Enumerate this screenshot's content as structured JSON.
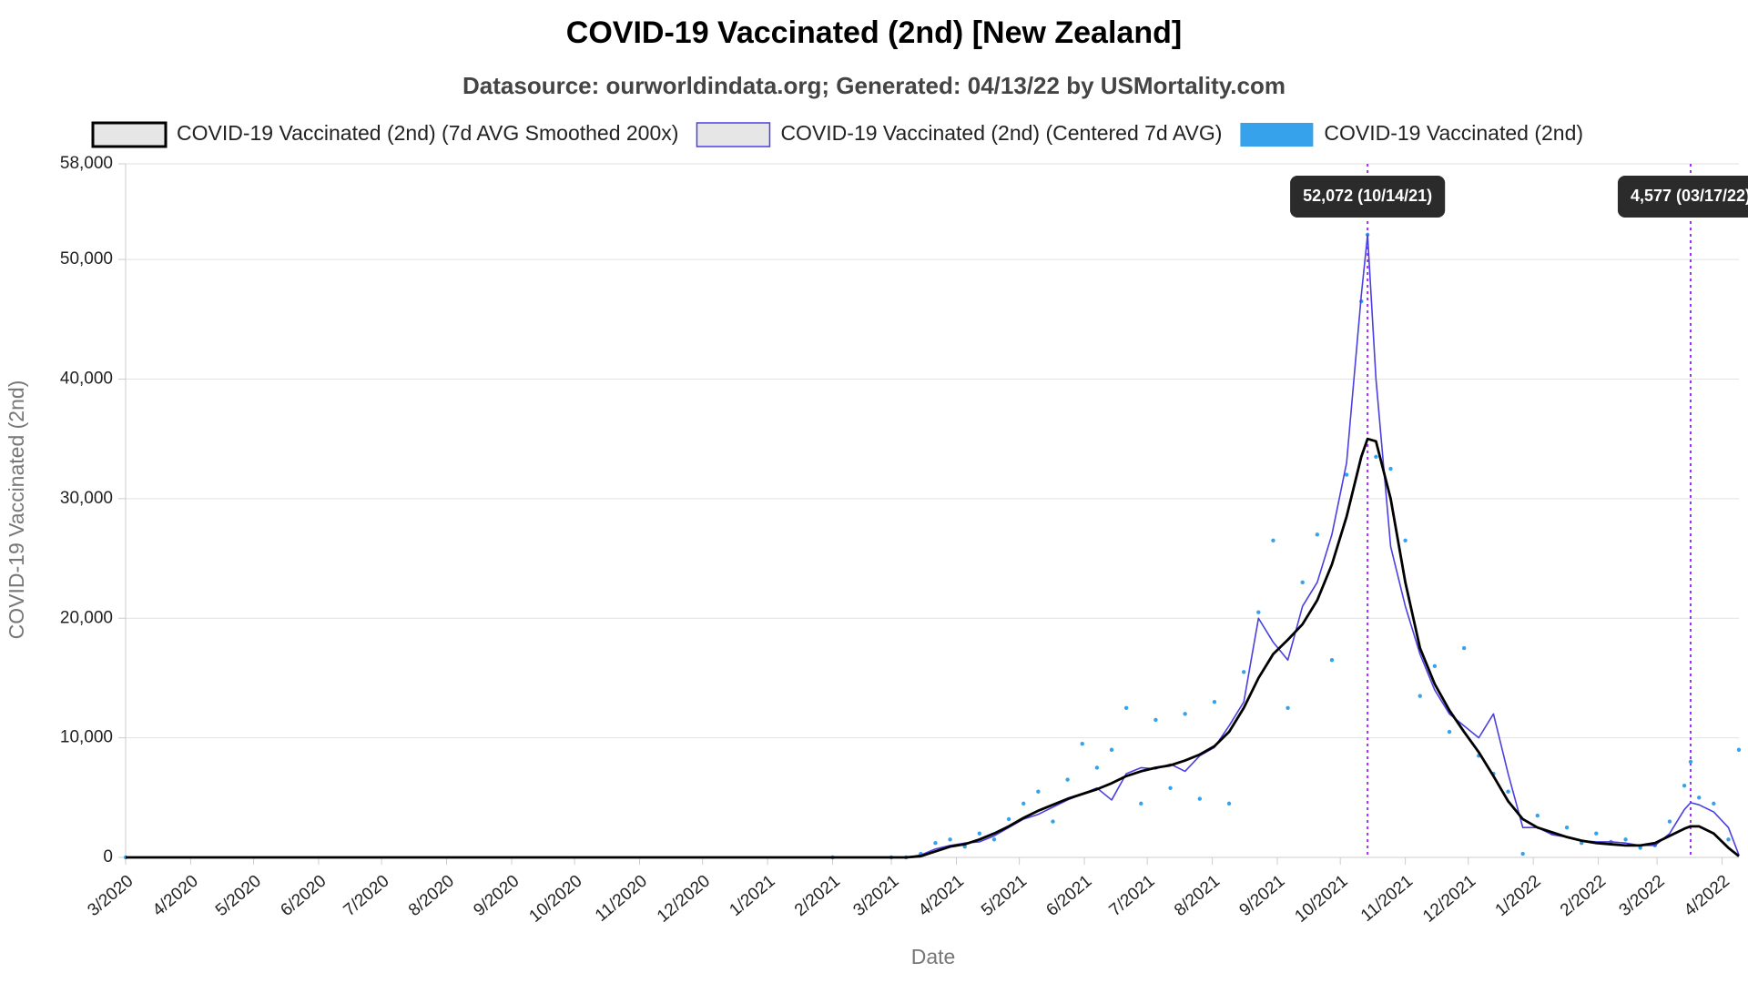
{
  "chart_data": {
    "type": "line",
    "title": "COVID-19 Vaccinated (2nd) [New Zealand]",
    "subtitle": "Datasource: ourworldindata.org; Generated: 04/13/22 by USMortality.com",
    "x_label": "Date",
    "y_label": "COVID-19 Vaccinated (2nd)",
    "x": [
      "2020-03-01",
      "2021-02-01",
      "2021-03-01",
      "2021-03-08",
      "2021-03-15",
      "2021-03-22",
      "2021-03-29",
      "2021-04-05",
      "2021-04-12",
      "2021-04-19",
      "2021-04-26",
      "2021-05-03",
      "2021-05-10",
      "2021-05-17",
      "2021-05-24",
      "2021-05-31",
      "2021-06-07",
      "2021-06-14",
      "2021-06-21",
      "2021-06-28",
      "2021-07-05",
      "2021-07-12",
      "2021-07-19",
      "2021-07-26",
      "2021-08-02",
      "2021-08-09",
      "2021-08-16",
      "2021-08-23",
      "2021-08-30",
      "2021-09-06",
      "2021-09-13",
      "2021-09-20",
      "2021-09-27",
      "2021-10-04",
      "2021-10-11",
      "2021-10-14",
      "2021-10-18",
      "2021-10-25",
      "2021-11-01",
      "2021-11-08",
      "2021-11-15",
      "2021-11-22",
      "2021-11-29",
      "2021-12-06",
      "2021-12-13",
      "2021-12-20",
      "2021-12-27",
      "2022-01-03",
      "2022-01-10",
      "2022-01-17",
      "2022-01-24",
      "2022-01-31",
      "2022-02-07",
      "2022-02-14",
      "2022-02-21",
      "2022-02-28",
      "2022-03-07",
      "2022-03-14",
      "2022-03-17",
      "2022-03-21",
      "2022-03-28",
      "2022-04-04",
      "2022-04-09"
    ],
    "series": [
      {
        "name": "COVID-19 Vaccinated (2nd) (7d AVG Smoothed 200x)",
        "type": "line",
        "color": "#000000",
        "values": [
          0,
          0,
          0,
          0,
          100,
          500,
          900,
          1100,
          1500,
          2000,
          2600,
          3300,
          3900,
          4400,
          4900,
          5300,
          5700,
          6200,
          6800,
          7200,
          7500,
          7700,
          8100,
          8600,
          9300,
          10500,
          12500,
          15000,
          17000,
          18200,
          19500,
          21500,
          24500,
          28500,
          33500,
          35000,
          34800,
          30000,
          23000,
          17500,
          14500,
          12300,
          10500,
          8800,
          6800,
          4700,
          3200,
          2500,
          2100,
          1700,
          1400,
          1200,
          1100,
          1000,
          1000,
          1200,
          1800,
          2400,
          2600,
          2600,
          2000,
          800,
          100
        ]
      },
      {
        "name": "COVID-19 Vaccinated (2nd) (Centered 7d AVG)",
        "type": "line",
        "color": "#4a3fe0",
        "values": [
          0,
          0,
          0,
          0,
          200,
          700,
          1000,
          1200,
          1300,
          1800,
          2500,
          3200,
          3600,
          4200,
          4800,
          5300,
          5800,
          4800,
          7000,
          7500,
          7400,
          7800,
          7200,
          8500,
          9200,
          11000,
          13000,
          20000,
          18000,
          16500,
          21000,
          23000,
          27000,
          33000,
          47000,
          52072,
          40000,
          26000,
          21000,
          17000,
          14000,
          12000,
          11000,
          10000,
          12000,
          7000,
          2500,
          2500,
          1900,
          1700,
          1400,
          1300,
          1300,
          1200,
          1000,
          1000,
          2000,
          4000,
          4577,
          4400,
          3800,
          2500,
          200
        ]
      },
      {
        "name": "COVID-19 Vaccinated (2nd)",
        "type": "scatter",
        "color": "#36a2eb",
        "values": [
          0,
          0,
          0,
          0,
          300,
          1200,
          1500,
          900,
          2000,
          1500,
          3200,
          4500,
          5500,
          3000,
          6500,
          9500,
          7500,
          9000,
          12500,
          4500,
          11500,
          5800,
          12000,
          4900,
          13000,
          4500,
          15500,
          20500,
          26500,
          12500,
          23000,
          27000,
          16500,
          32000,
          46500,
          52072,
          33500,
          32500,
          26500,
          13500,
          16000,
          10500,
          17500,
          8500,
          7000,
          5500,
          300,
          3500,
          2000,
          2500,
          1200,
          2000,
          1300,
          1500,
          800,
          1000,
          3000,
          6000,
          8000,
          5000,
          4500,
          1500,
          9000
        ]
      }
    ],
    "annotations": [
      {
        "x": "2021-10-14",
        "value": 52072,
        "label": "52,072 (10/14/21)"
      },
      {
        "x": "2022-03-17",
        "value": 4577,
        "label": "4,577 (03/17/22)"
      }
    ],
    "xlim": [
      "2020-03-01",
      "2022-04-09"
    ],
    "xticks": [
      {
        "value": "2020-03-01",
        "label": "3/2020"
      },
      {
        "value": "2020-04-01",
        "label": "4/2020"
      },
      {
        "value": "2020-05-01",
        "label": "5/2020"
      },
      {
        "value": "2020-06-01",
        "label": "6/2020"
      },
      {
        "value": "2020-07-01",
        "label": "7/2020"
      },
      {
        "value": "2020-08-01",
        "label": "8/2020"
      },
      {
        "value": "2020-09-01",
        "label": "9/2020"
      },
      {
        "value": "2020-10-01",
        "label": "10/2020"
      },
      {
        "value": "2020-11-01",
        "label": "11/2020"
      },
      {
        "value": "2020-12-01",
        "label": "12/2020"
      },
      {
        "value": "2021-01-01",
        "label": "1/2021"
      },
      {
        "value": "2021-02-01",
        "label": "2/2021"
      },
      {
        "value": "2021-03-01",
        "label": "3/2021"
      },
      {
        "value": "2021-04-01",
        "label": "4/2021"
      },
      {
        "value": "2021-05-01",
        "label": "5/2021"
      },
      {
        "value": "2021-06-01",
        "label": "6/2021"
      },
      {
        "value": "2021-07-01",
        "label": "7/2021"
      },
      {
        "value": "2021-08-01",
        "label": "8/2021"
      },
      {
        "value": "2021-09-01",
        "label": "9/2021"
      },
      {
        "value": "2021-10-01",
        "label": "10/2021"
      },
      {
        "value": "2021-11-01",
        "label": "11/2021"
      },
      {
        "value": "2021-12-01",
        "label": "12/2021"
      },
      {
        "value": "2022-01-01",
        "label": "1/2022"
      },
      {
        "value": "2022-02-01",
        "label": "2/2022"
      },
      {
        "value": "2022-03-01",
        "label": "3/2022"
      },
      {
        "value": "2022-04-01",
        "label": "4/2022"
      }
    ],
    "ylim": [
      0,
      58000
    ],
    "yticks": [
      0,
      {
        "value": 10000,
        "label": "10,000"
      },
      {
        "value": 20000,
        "label": "20,000"
      },
      {
        "value": 30000,
        "label": "30,000"
      },
      {
        "value": 40000,
        "label": "40,000"
      },
      {
        "value": 50000,
        "label": "50,000"
      },
      {
        "value": 58000,
        "label": "58,000"
      }
    ],
    "grid": true
  }
}
